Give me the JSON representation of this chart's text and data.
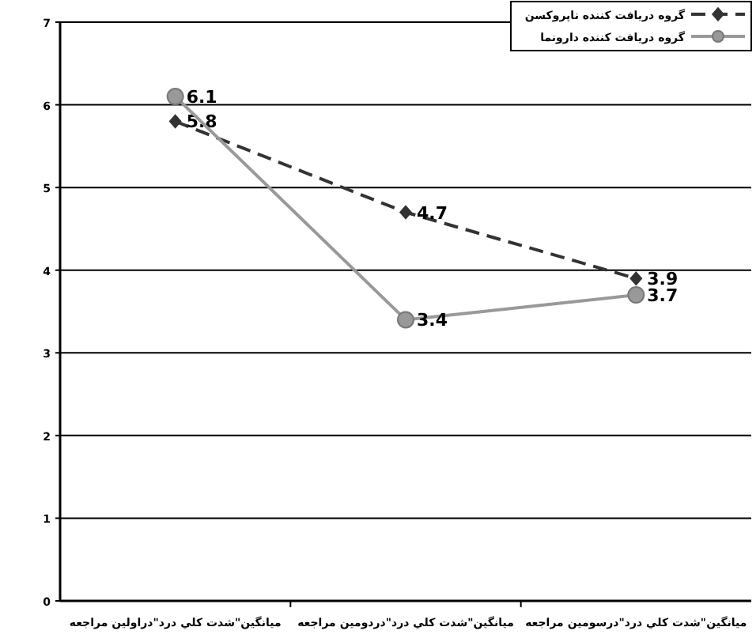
{
  "chart_data": {
    "type": "line",
    "categories": [
      "ميانگين\"شدت كلي درد\"دراولين مراجعه",
      "ميانگين\"شدت كلي درد\"دردومين مراجعه",
      "ميانگين\"شدت كلي درد\"درسومين مراجعه"
    ],
    "series": [
      {
        "name": "گروه دريافت كننده ناپروكسن",
        "color": "#333333",
        "values": [
          5.8,
          4.7,
          3.9
        ],
        "line_style": "dashed",
        "marker": "diamond"
      },
      {
        "name": "گروه دريافت كننده دارونما",
        "color": "#999999",
        "values": [
          6.1,
          3.4,
          3.7
        ],
        "line_style": "solid",
        "marker": "circle"
      }
    ],
    "ylim": [
      0,
      7
    ],
    "yticks": [
      0,
      1,
      2,
      3,
      4,
      5,
      6,
      7
    ],
    "grid": "y",
    "legend": "top right",
    "data_labels": true
  }
}
